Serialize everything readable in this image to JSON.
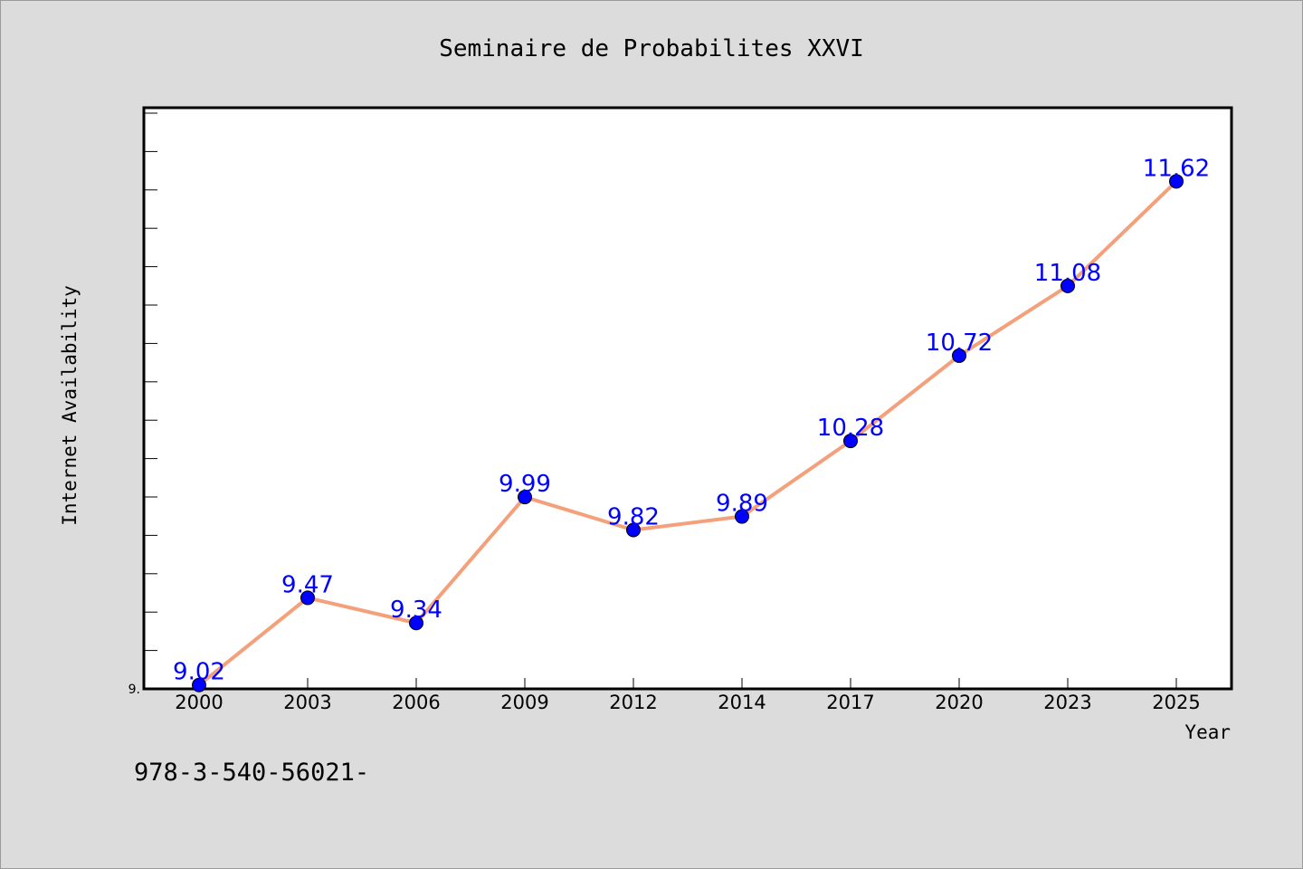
{
  "chart_data": {
    "type": "line",
    "title": "Seminaire de Probabilites XXVI",
    "xlabel": "Year",
    "ylabel": "Internet Availability",
    "categories": [
      "2000",
      "2003",
      "2006",
      "2009",
      "2012",
      "2014",
      "2017",
      "2020",
      "2023",
      "2025"
    ],
    "series": [
      {
        "values": [
          9.02,
          9.47,
          9.34,
          9.99,
          9.82,
          9.89,
          10.28,
          10.72,
          11.08,
          11.62
        ],
        "labels": [
          "9.02",
          "9.47",
          "9.34",
          "9.99",
          "9.82",
          "9.89",
          "10.28",
          "10.72",
          "11.08",
          "11.62"
        ],
        "line_color": "#f4a07a",
        "marker_color": "#0000ff"
      }
    ],
    "y_tick_label": "9.",
    "ylim": [
      9.0,
      12.0
    ],
    "grid": false,
    "legend": "none"
  },
  "footer": {
    "text": "978-3-540-56021-"
  }
}
